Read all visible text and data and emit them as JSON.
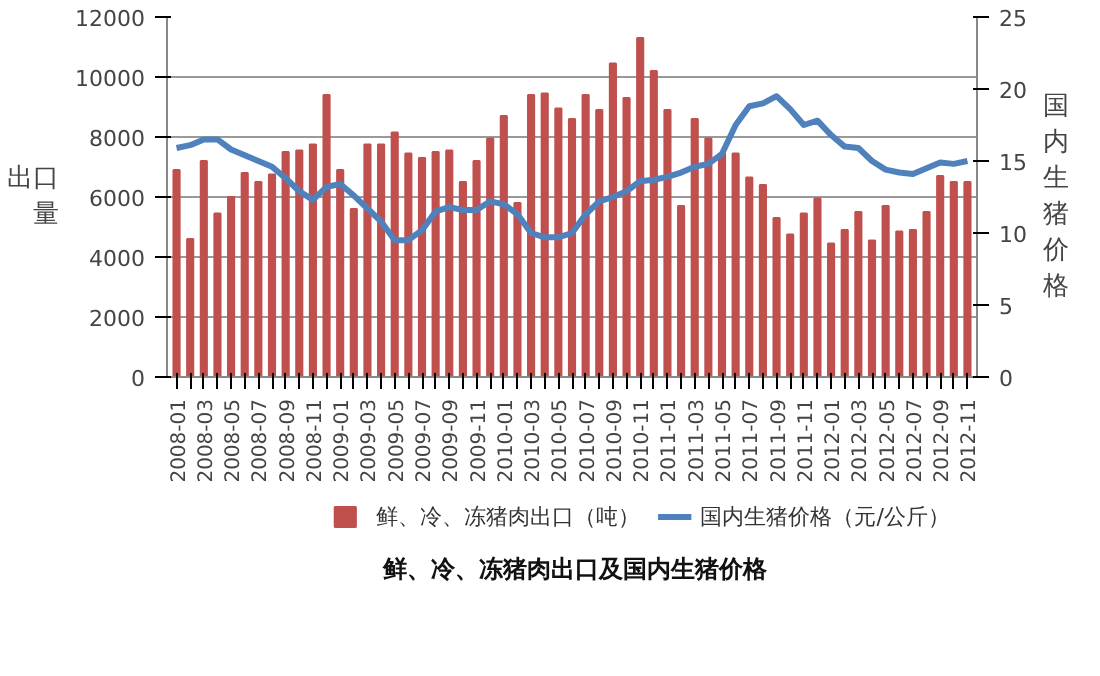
{
  "chart_data": {
    "type": "bar",
    "title": "鲜、冷、冻猪肉出口及国内生猪价格",
    "ylabel": "出口量",
    "y2label": "国内生猪价格",
    "categories": [
      "2008-01",
      null,
      "2008-03",
      null,
      "2008-05",
      null,
      "2008-07",
      null,
      "2008-09",
      null,
      "2008-11",
      null,
      "2009-01",
      null,
      "2009-03",
      null,
      "2009-05",
      null,
      "2009-07",
      null,
      "2009-09",
      null,
      "2009-11",
      null,
      "2010-01",
      null,
      "2010-03",
      null,
      "2010-05",
      null,
      "2010-07",
      null,
      "2010-09",
      null,
      "2010-11",
      null,
      "2011-01",
      null,
      "2011-03",
      null,
      "2011-05",
      null,
      "2011-07",
      null,
      "2011-09",
      null,
      "2011-11",
      null,
      "2012-01",
      null,
      "2012-03",
      null,
      "2012-05",
      null,
      "2012-07",
      null,
      "2012-09",
      null,
      "2012-11"
    ],
    "series": [
      {
        "name": "鲜、冷、冻猪肉出口（吨）",
        "color": "#c0504d",
        "values": [
          6900,
          4600,
          7200,
          5450,
          6000,
          6800,
          6500,
          6750,
          7500,
          7550,
          7750,
          9400,
          6900,
          5600,
          7750,
          7750,
          8150,
          7450,
          7300,
          7500,
          7550,
          6500,
          7200,
          7950,
          8700,
          5800,
          9400,
          9450,
          8950,
          8600,
          9400,
          8900,
          10450,
          9300,
          11300,
          10200,
          8900,
          5700,
          8600,
          7950,
          7450,
          7450,
          6650,
          6400,
          5300,
          4750,
          5450,
          5950,
          4450,
          4900,
          5500,
          4550,
          5700,
          4850,
          4900,
          5500,
          6700,
          6500,
          6500
        ]
      },
      {
        "name": "国内生猪价格（元/公斤）",
        "type": "line",
        "axis": "y2",
        "color": "#4f81bd",
        "values": [
          15.9,
          16.1,
          16.5,
          16.5,
          15.8,
          15.4,
          15.0,
          14.6,
          13.8,
          12.9,
          12.3,
          13.2,
          13.4,
          12.6,
          11.7,
          10.8,
          9.5,
          9.5,
          10.2,
          11.5,
          11.8,
          11.6,
          11.6,
          12.2,
          12.0,
          11.3,
          10.0,
          9.7,
          9.7,
          10.0,
          11.3,
          12.2,
          12.5,
          12.9,
          13.6,
          13.7,
          13.9,
          14.2,
          14.6,
          14.8,
          15.5,
          17.5,
          18.8,
          19.0,
          19.5,
          18.6,
          17.5,
          17.8,
          16.8,
          16.0,
          15.9,
          15.0,
          14.4,
          14.2,
          14.1,
          14.5,
          14.9,
          14.8,
          15.0
        ]
      }
    ],
    "ylim": [
      0,
      12000
    ],
    "yticks": [
      0,
      2000,
      4000,
      6000,
      8000,
      10000,
      12000
    ],
    "y2lim": [
      0,
      25
    ],
    "y2ticks": [
      0,
      5,
      10,
      15,
      20,
      25
    ],
    "grid": "y",
    "legend": "bottom"
  }
}
